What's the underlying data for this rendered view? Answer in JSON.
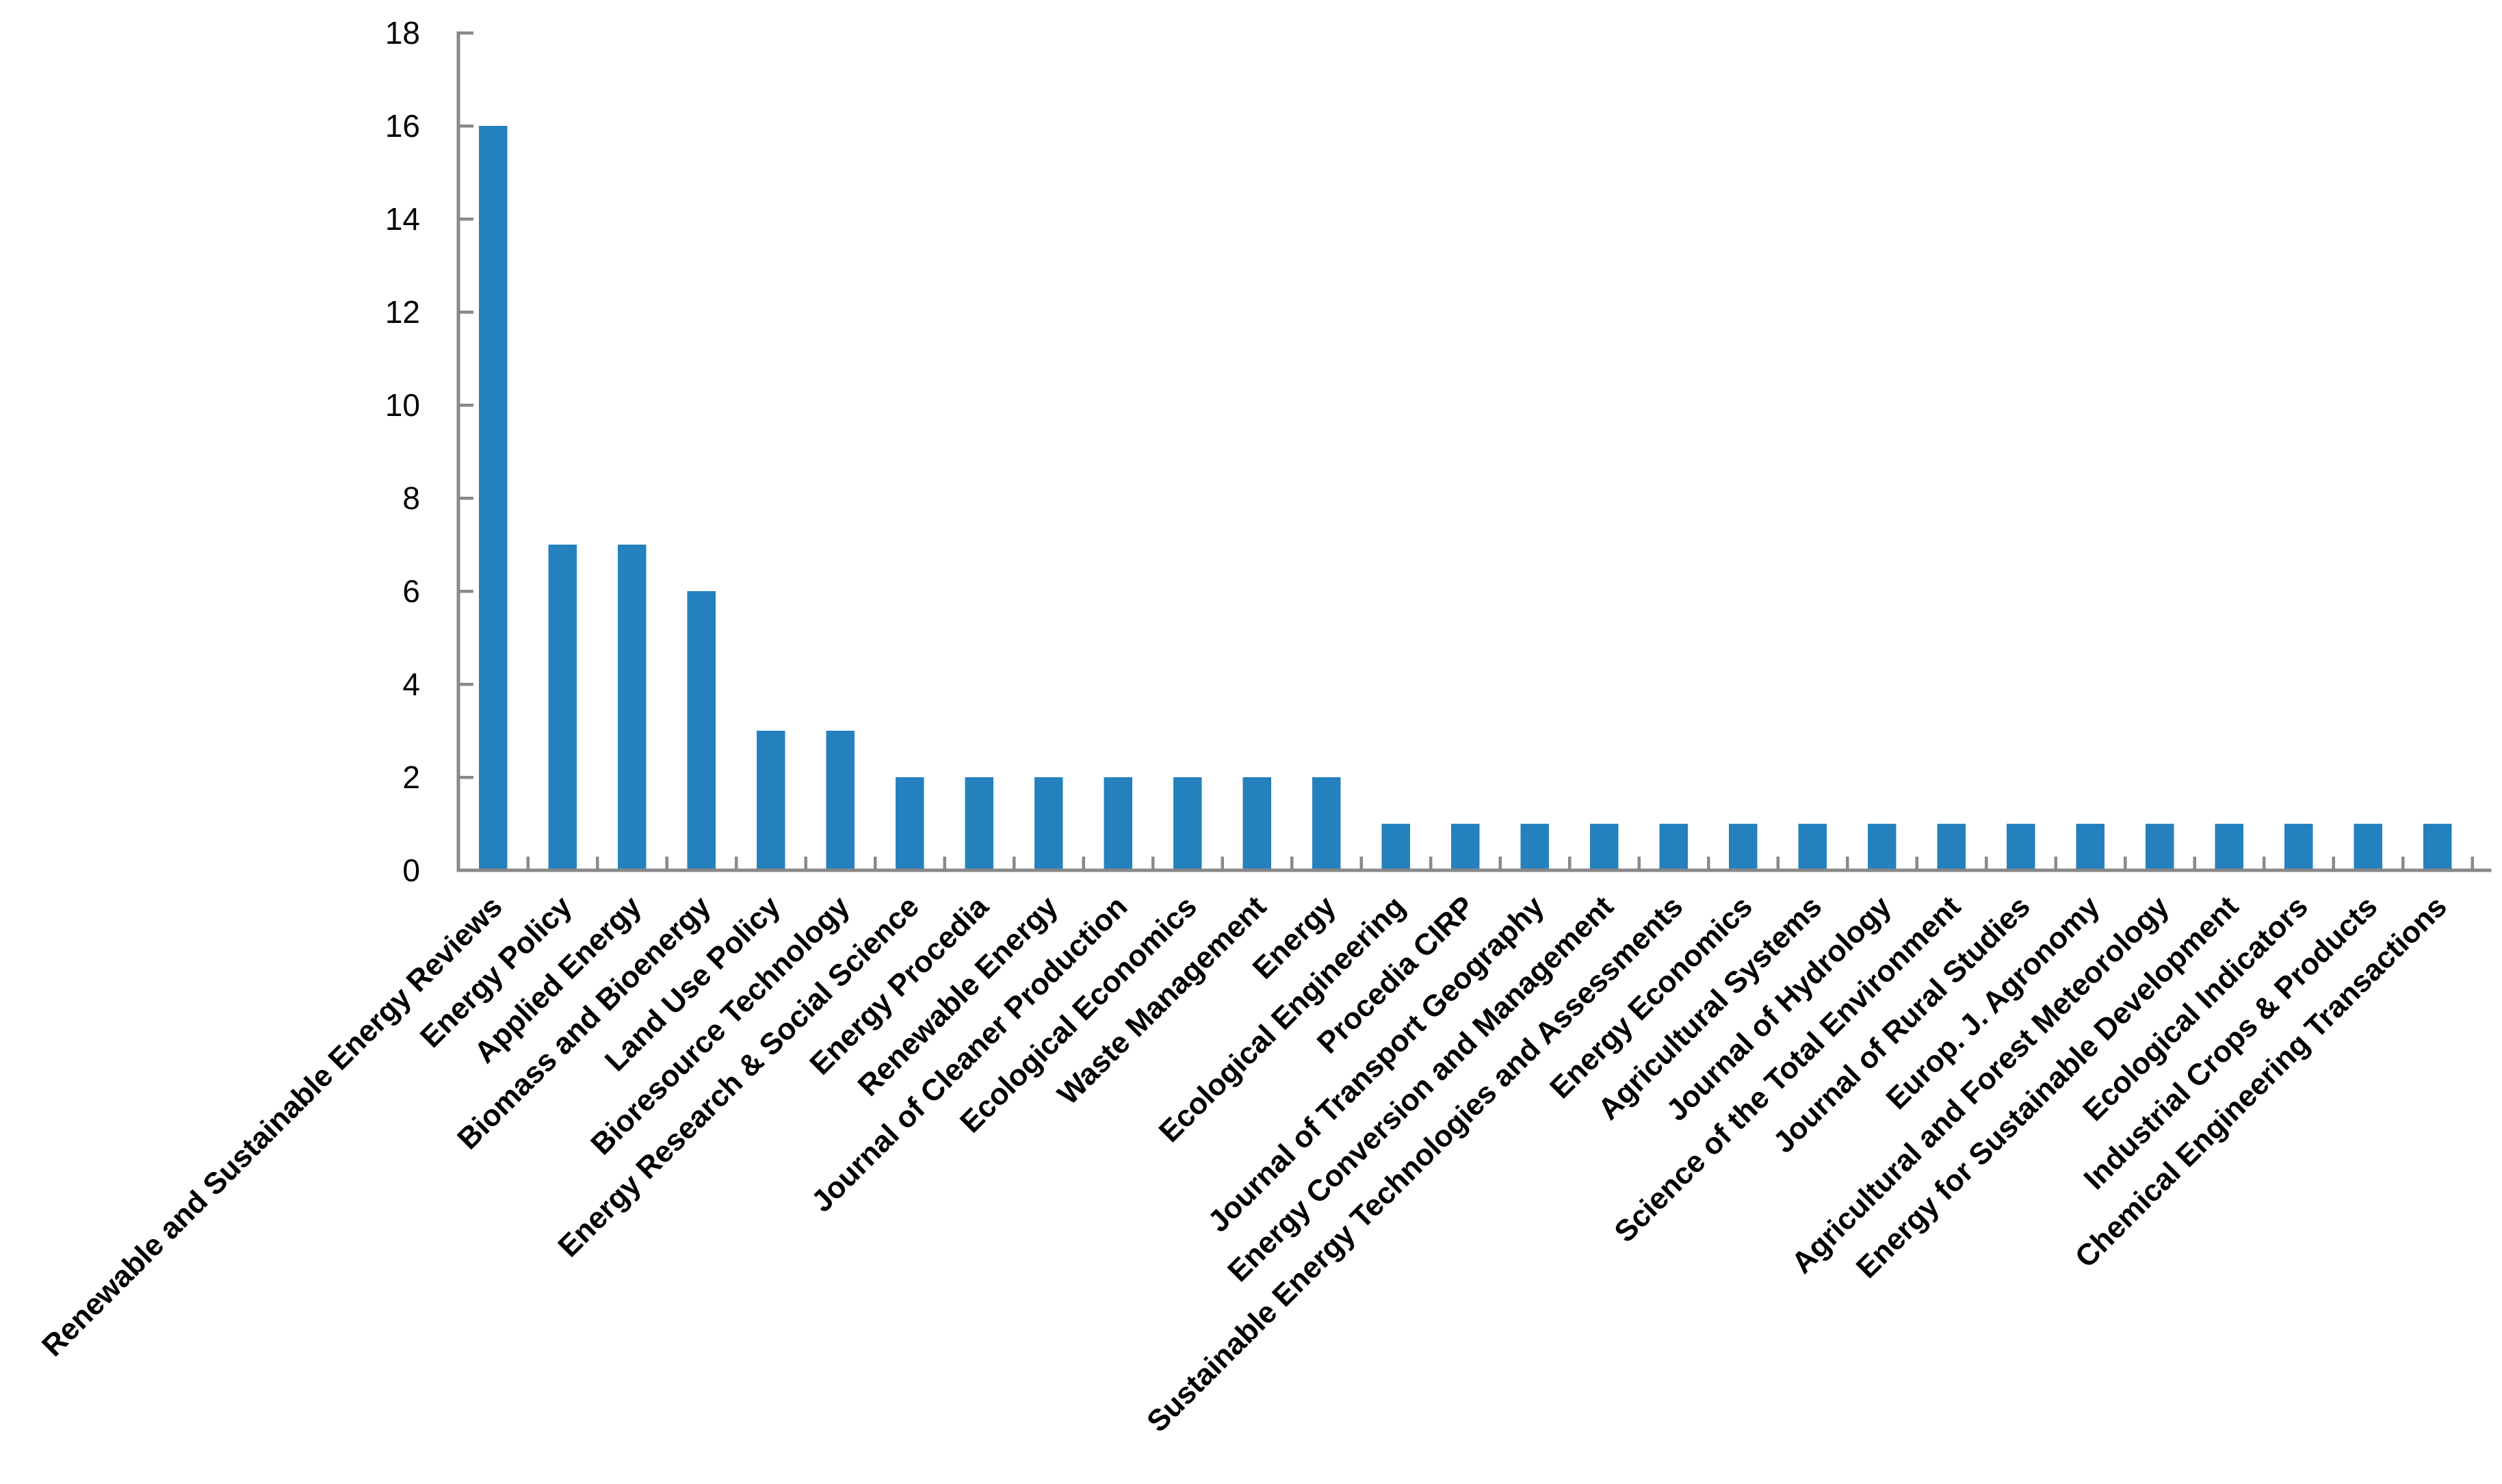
{
  "chart_data": {
    "type": "bar",
    "title": "",
    "xlabel": "",
    "ylabel": "",
    "categories": [
      "Renewable and Sustainable Energy Reviews",
      "Energy Policy",
      "Applied Energy",
      "Biomass and Bioenergy",
      "Land Use Policy",
      "Bioresource Technology",
      "Energy Research & Social Science",
      "Energy Procedia",
      "Renewable Energy",
      "Journal of Cleaner Production",
      "Ecological Economics",
      "Waste Management",
      "Energy",
      "Ecological Engineering",
      "Procedia CIRP",
      "Journal of Transport Geography",
      "Energy Conversion and Management",
      "Sustainable Energy Technologies and Assessments",
      "Energy Economics",
      "Agricultural Systems",
      "Journal of Hydrology",
      "Science of the Total Environment",
      "Journal of Rural Studies",
      "Europ. J. Agronomy",
      "Agricultural and Forest Meteorology",
      "Energy for Sustainable Development",
      "Ecological Indicators",
      "Industrial Crops & Products",
      "Chemical Engineering Transactions"
    ],
    "values": [
      16,
      7,
      7,
      6,
      3,
      3,
      2,
      2,
      2,
      2,
      2,
      2,
      2,
      1,
      1,
      1,
      1,
      1,
      1,
      1,
      1,
      1,
      1,
      1,
      1,
      1,
      1,
      1,
      1
    ],
    "ylim": [
      0,
      18
    ],
    "y_ticks": [
      "0",
      "2",
      "4",
      "6",
      "8",
      "10",
      "12",
      "14",
      "16",
      "18"
    ],
    "grid": false,
    "legend": "none",
    "x_label_rotation_deg": 45,
    "colors": {
      "bar": "#2581BE",
      "axis": "#898989",
      "text": "#000000",
      "background": "#FFFFFF"
    }
  }
}
